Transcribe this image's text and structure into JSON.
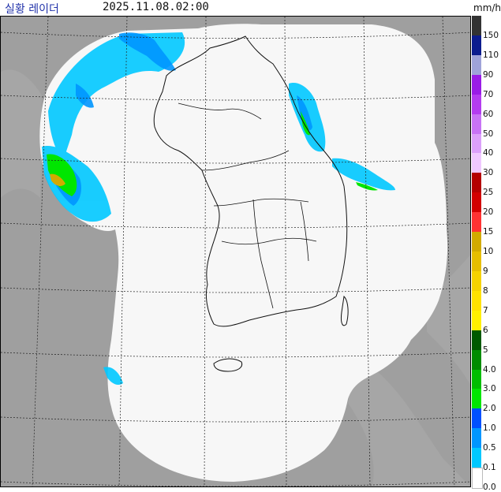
{
  "header": {
    "title": "실황 레이더",
    "timestamp": "2025.11.08.02:00",
    "unit": "mm/h"
  },
  "legend": [
    {
      "label": "150",
      "color": "#333333"
    },
    {
      "label": "110",
      "color": "#0c1c8e"
    },
    {
      "label": "90",
      "color": "#9fa3d9"
    },
    {
      "label": "70",
      "color": "#9a1ce6"
    },
    {
      "label": "60",
      "color": "#b43cf0"
    },
    {
      "label": "50",
      "color": "#c873f5"
    },
    {
      "label": "40",
      "color": "#dca0fa"
    },
    {
      "label": "30",
      "color": "#f0c8ff"
    },
    {
      "label": "25",
      "color": "#b40000"
    },
    {
      "label": "20",
      "color": "#d20000"
    },
    {
      "label": "15",
      "color": "#ff3232"
    },
    {
      "label": "10",
      "color": "#d2aa00"
    },
    {
      "label": "9",
      "color": "#e6be00"
    },
    {
      "label": "8",
      "color": "#f5d200"
    },
    {
      "label": "7",
      "color": "#ffe100"
    },
    {
      "label": "6",
      "color": "#fff000"
    },
    {
      "label": "5",
      "color": "#005a00"
    },
    {
      "label": "4.0",
      "color": "#008c00"
    },
    {
      "label": "3.0",
      "color": "#00be00"
    },
    {
      "label": "2.0",
      "color": "#00e600"
    },
    {
      "label": "1.0",
      "color": "#0050ff"
    },
    {
      "label": "0.5",
      "color": "#0096ff"
    },
    {
      "label": "0.1",
      "color": "#00c8ff"
    },
    {
      "label": "0.0",
      "color": "#ffffff"
    }
  ],
  "colors": {
    "land_outside": "#9f9f9f",
    "coverage": "#f7f7f7",
    "grid": "#222222"
  }
}
